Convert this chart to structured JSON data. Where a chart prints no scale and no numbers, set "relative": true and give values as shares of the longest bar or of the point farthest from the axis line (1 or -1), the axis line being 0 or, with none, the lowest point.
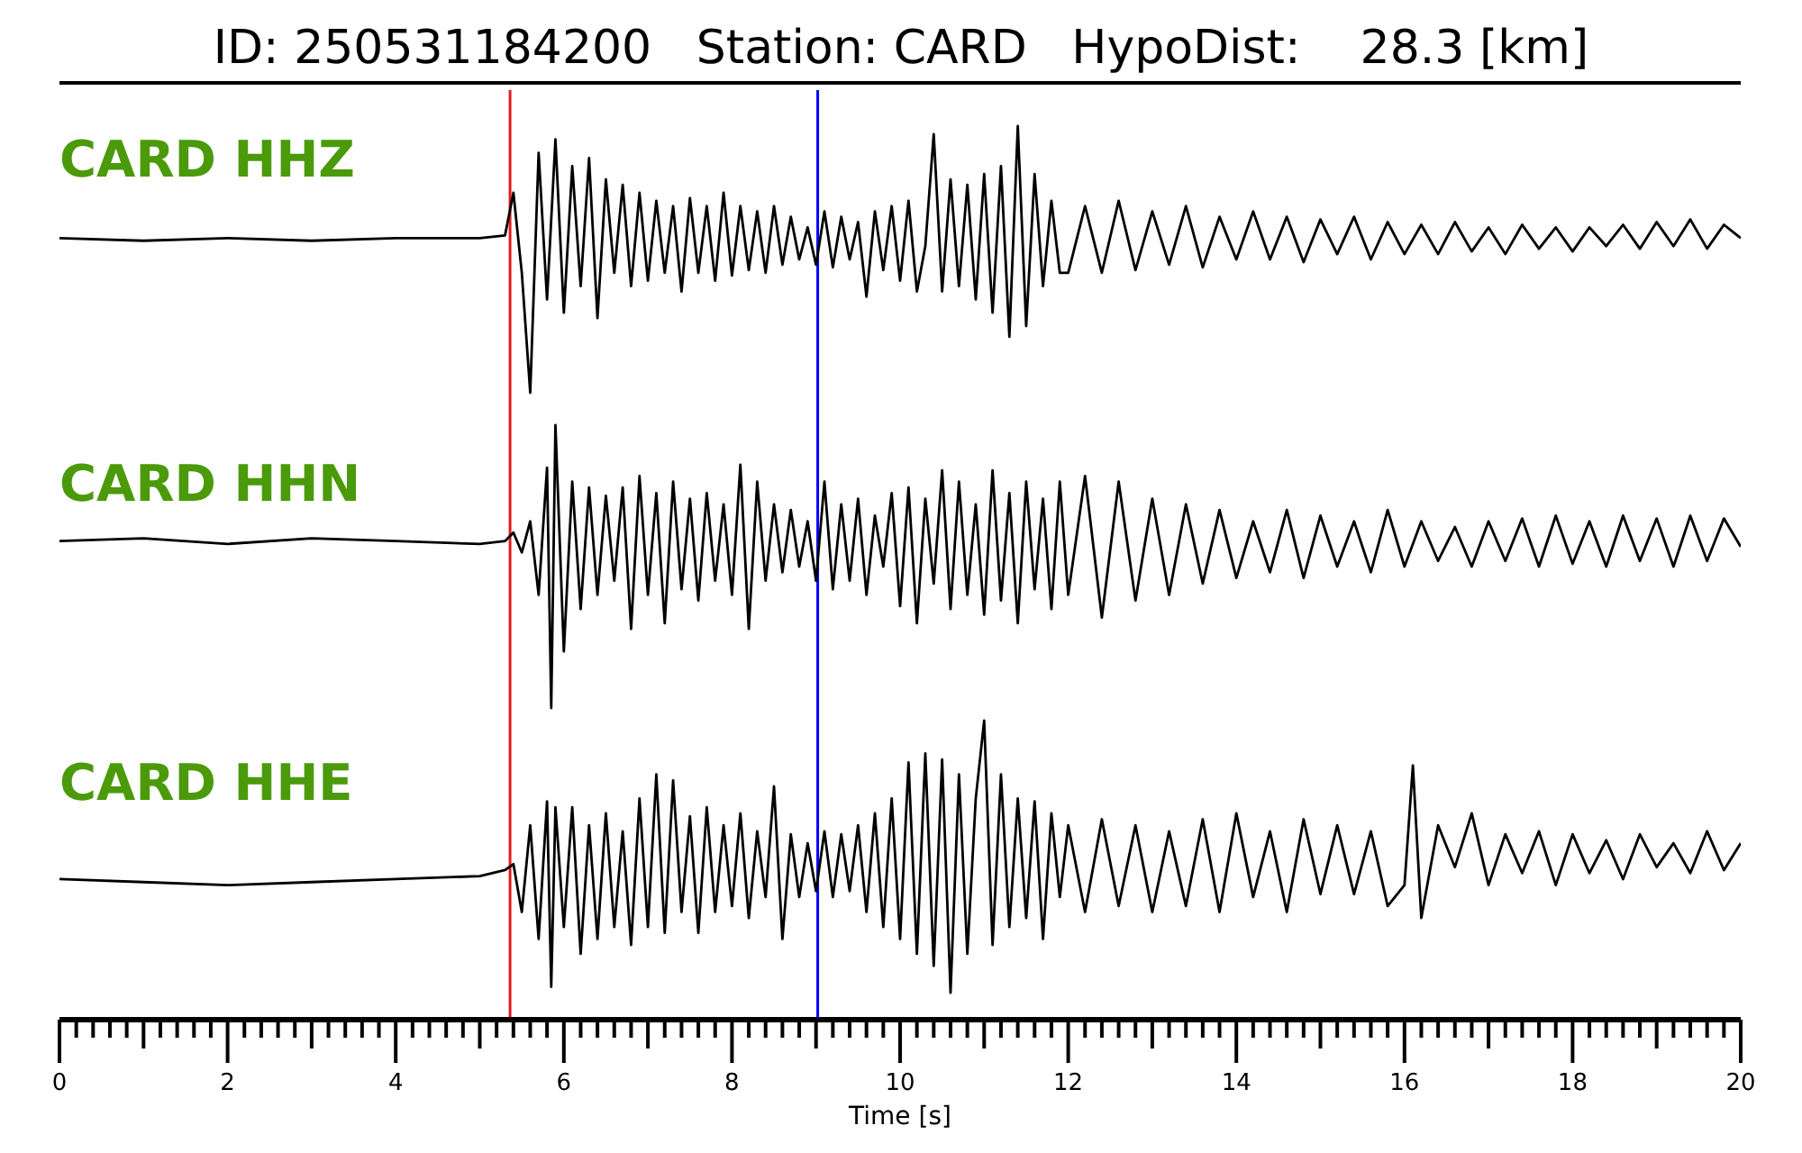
{
  "chart_data": [
    {
      "type": "line",
      "title": "ID: 250531184200   Station: CARD   HypoDist:    28.3 [km]",
      "relative": true,
      "color": "#000000",
      "xlim": [
        0,
        20
      ],
      "tick_labels": false,
      "annotations": [
        "CARD HHZ"
      ],
      "ref_lines": [
        {
          "axis": "x",
          "value": 5.36,
          "color": "#e31a1c"
        },
        {
          "axis": "x",
          "value": 9.02,
          "color": "#0000ff"
        }
      ],
      "x": [
        0,
        1,
        2,
        3,
        4,
        5,
        5.3,
        5.4,
        5.5,
        5.6,
        5.7,
        5.8,
        5.9,
        6,
        6.1,
        6.2,
        6.3,
        6.4,
        6.5,
        6.6,
        6.7,
        6.8,
        6.9,
        7,
        7.1,
        7.2,
        7.3,
        7.4,
        7.5,
        7.6,
        7.7,
        7.8,
        7.9,
        8,
        8.1,
        8.2,
        8.3,
        8.4,
        8.5,
        8.6,
        8.7,
        8.8,
        8.9,
        9,
        9.1,
        9.2,
        9.3,
        9.4,
        9.5,
        9.6,
        9.7,
        9.8,
        9.9,
        10,
        10.1,
        10.2,
        10.3,
        10.4,
        10.5,
        10.6,
        10.7,
        10.8,
        10.9,
        11,
        11.1,
        11.2,
        11.3,
        11.4,
        11.5,
        11.6,
        11.7,
        11.8,
        11.9,
        12,
        12.2,
        12.4,
        12.6,
        12.8,
        13,
        13.2,
        13.4,
        13.6,
        13.8,
        14,
        14.2,
        14.4,
        14.6,
        14.8,
        15,
        15.2,
        15.4,
        15.6,
        15.8,
        16,
        16.2,
        16.4,
        16.6,
        16.8,
        17,
        17.2,
        17.4,
        17.6,
        17.8,
        18,
        18.2,
        18.4,
        18.6,
        18.8,
        19,
        19.2,
        19.4,
        19.6,
        19.8,
        20
      ],
      "values": [
        0.58,
        0.57,
        0.58,
        0.57,
        0.58,
        0.58,
        0.59,
        0.75,
        0.45,
        0,
        0.9,
        0.35,
        0.95,
        0.3,
        0.85,
        0.4,
        0.88,
        0.28,
        0.8,
        0.45,
        0.78,
        0.4,
        0.75,
        0.42,
        0.72,
        0.45,
        0.7,
        0.38,
        0.73,
        0.45,
        0.7,
        0.42,
        0.75,
        0.44,
        0.7,
        0.46,
        0.68,
        0.45,
        0.7,
        0.48,
        0.66,
        0.5,
        0.62,
        0.48,
        0.68,
        0.47,
        0.66,
        0.5,
        0.64,
        0.36,
        0.68,
        0.46,
        0.7,
        0.42,
        0.72,
        0.38,
        0.55,
        0.97,
        0.38,
        0.8,
        0.4,
        0.78,
        0.35,
        0.82,
        0.3,
        0.85,
        0.21,
        1,
        0.25,
        0.82,
        0.4,
        0.72,
        0.45,
        0.45,
        0.7,
        0.45,
        0.72,
        0.46,
        0.68,
        0.48,
        0.7,
        0.47,
        0.66,
        0.5,
        0.68,
        0.5,
        0.66,
        0.49,
        0.65,
        0.52,
        0.66,
        0.5,
        0.64,
        0.52,
        0.63,
        0.52,
        0.64,
        0.53,
        0.62,
        0.52,
        0.63,
        0.54,
        0.62,
        0.53,
        0.62,
        0.55,
        0.63,
        0.54,
        0.64,
        0.55,
        0.65,
        0.54,
        0.63,
        0.58
      ]
    },
    {
      "type": "line",
      "relative": true,
      "color": "#000000",
      "xlim": [
        0,
        20
      ],
      "tick_labels": false,
      "annotations": [
        "CARD HHN"
      ],
      "ref_lines": [
        {
          "axis": "x",
          "value": 5.36,
          "color": "#e31a1c"
        },
        {
          "axis": "x",
          "value": 9.02,
          "color": "#0000ff"
        }
      ],
      "x": [
        0,
        1,
        2,
        3,
        4,
        5,
        5.3,
        5.4,
        5.5,
        5.6,
        5.7,
        5.8,
        5.85,
        5.9,
        6,
        6.1,
        6.2,
        6.3,
        6.4,
        6.5,
        6.6,
        6.7,
        6.8,
        6.9,
        7,
        7.1,
        7.2,
        7.3,
        7.4,
        7.5,
        7.6,
        7.7,
        7.8,
        7.9,
        8,
        8.1,
        8.2,
        8.3,
        8.4,
        8.5,
        8.6,
        8.7,
        8.8,
        8.9,
        9,
        9.1,
        9.2,
        9.3,
        9.4,
        9.5,
        9.6,
        9.7,
        9.8,
        9.9,
        10,
        10.1,
        10.2,
        10.3,
        10.4,
        10.5,
        10.6,
        10.7,
        10.8,
        10.9,
        11,
        11.1,
        11.2,
        11.3,
        11.4,
        11.5,
        11.6,
        11.7,
        11.8,
        11.9,
        12,
        12.2,
        12.4,
        12.6,
        12.8,
        13,
        13.2,
        13.4,
        13.6,
        13.8,
        14,
        14.2,
        14.4,
        14.6,
        14.8,
        15,
        15.2,
        15.4,
        15.6,
        15.8,
        16,
        16.2,
        16.4,
        16.6,
        16.8,
        17,
        17.2,
        17.4,
        17.6,
        17.8,
        18,
        18.2,
        18.4,
        18.6,
        18.8,
        19,
        19.2,
        19.4,
        19.6,
        19.8,
        20
      ],
      "values": [
        0.59,
        0.6,
        0.58,
        0.6,
        0.59,
        0.58,
        0.59,
        0.62,
        0.55,
        0.66,
        0.4,
        0.85,
        0,
        1,
        0.2,
        0.8,
        0.35,
        0.78,
        0.4,
        0.75,
        0.45,
        0.78,
        0.28,
        0.82,
        0.4,
        0.76,
        0.3,
        0.8,
        0.42,
        0.74,
        0.38,
        0.76,
        0.45,
        0.72,
        0.4,
        0.86,
        0.28,
        0.8,
        0.45,
        0.72,
        0.48,
        0.7,
        0.5,
        0.66,
        0.45,
        0.8,
        0.42,
        0.72,
        0.45,
        0.74,
        0.4,
        0.68,
        0.5,
        0.76,
        0.36,
        0.78,
        0.3,
        0.74,
        0.44,
        0.84,
        0.35,
        0.8,
        0.4,
        0.72,
        0.33,
        0.84,
        0.38,
        0.76,
        0.3,
        0.8,
        0.42,
        0.74,
        0.35,
        0.8,
        0.4,
        0.82,
        0.32,
        0.8,
        0.38,
        0.74,
        0.4,
        0.72,
        0.44,
        0.7,
        0.46,
        0.66,
        0.48,
        0.7,
        0.46,
        0.68,
        0.5,
        0.66,
        0.48,
        0.7,
        0.5,
        0.66,
        0.52,
        0.64,
        0.5,
        0.66,
        0.52,
        0.67,
        0.5,
        0.68,
        0.51,
        0.66,
        0.5,
        0.68,
        0.52,
        0.67,
        0.5,
        0.68,
        0.52,
        0.67,
        0.57
      ]
    },
    {
      "type": "line",
      "relative": true,
      "color": "#000000",
      "xlim": [
        0,
        20
      ],
      "tick_labels": "x",
      "xlabel": "Time [s]",
      "annotations": [
        "CARD HHE"
      ],
      "ref_lines": [
        {
          "axis": "x",
          "value": 5.36,
          "color": "#e31a1c"
        },
        {
          "axis": "x",
          "value": 9.02,
          "color": "#0000ff"
        }
      ],
      "xticks": [
        0,
        {
          "value": 0.2,
          "label": null
        },
        {
          "value": 0.4,
          "label": null
        },
        {
          "value": 0.6,
          "label": null
        },
        {
          "value": 0.8,
          "label": null
        },
        {
          "value": 1,
          "label": null
        },
        {
          "value": 1.2,
          "label": null
        },
        {
          "value": 1.4,
          "label": null
        },
        {
          "value": 1.6,
          "label": null
        },
        {
          "value": 1.8,
          "label": null
        },
        2,
        {
          "value": 2.2,
          "label": null
        },
        {
          "value": 2.4,
          "label": null
        },
        {
          "value": 2.6,
          "label": null
        },
        {
          "value": 2.8,
          "label": null
        },
        {
          "value": 3,
          "label": null
        },
        {
          "value": 3.2,
          "label": null
        },
        {
          "value": 3.4,
          "label": null
        },
        {
          "value": 3.6,
          "label": null
        },
        {
          "value": 3.8,
          "label": null
        },
        4,
        {
          "value": 4.2,
          "label": null
        },
        {
          "value": 4.4,
          "label": null
        },
        {
          "value": 4.6,
          "label": null
        },
        {
          "value": 4.8,
          "label": null
        },
        {
          "value": 5,
          "label": null
        },
        {
          "value": 5.2,
          "label": null
        },
        {
          "value": 5.4,
          "label": null
        },
        {
          "value": 5.6,
          "label": null
        },
        {
          "value": 5.8,
          "label": null
        },
        6,
        {
          "value": 6.2,
          "label": null
        },
        {
          "value": 6.4,
          "label": null
        },
        {
          "value": 6.6,
          "label": null
        },
        {
          "value": 6.8,
          "label": null
        },
        {
          "value": 7,
          "label": null
        },
        {
          "value": 7.2,
          "label": null
        },
        {
          "value": 7.4,
          "label": null
        },
        {
          "value": 7.6,
          "label": null
        },
        {
          "value": 7.8,
          "label": null
        },
        8,
        {
          "value": 8.2,
          "label": null
        },
        {
          "value": 8.4,
          "label": null
        },
        {
          "value": 8.6,
          "label": null
        },
        {
          "value": 8.8,
          "label": null
        },
        {
          "value": 9,
          "label": null
        },
        {
          "value": 9.2,
          "label": null
        },
        {
          "value": 9.4,
          "label": null
        },
        {
          "value": 9.6,
          "label": null
        },
        {
          "value": 9.8,
          "label": null
        },
        10,
        {
          "value": 10.2,
          "label": null
        },
        {
          "value": 10.4,
          "label": null
        },
        {
          "value": 10.6,
          "label": null
        },
        {
          "value": 10.8,
          "label": null
        },
        {
          "value": 11,
          "label": null
        },
        {
          "value": 11.2,
          "label": null
        },
        {
          "value": 11.4,
          "label": null
        },
        {
          "value": 11.6,
          "label": null
        },
        {
          "value": 11.8,
          "label": null
        },
        12,
        {
          "value": 12.2,
          "label": null
        },
        {
          "value": 12.4,
          "label": null
        },
        {
          "value": 12.6,
          "label": null
        },
        {
          "value": 12.8,
          "label": null
        },
        {
          "value": 13,
          "label": null
        },
        {
          "value": 13.2,
          "label": null
        },
        {
          "value": 13.4,
          "label": null
        },
        {
          "value": 13.6,
          "label": null
        },
        {
          "value": 13.8,
          "label": null
        },
        14,
        {
          "value": 14.2,
          "label": null
        },
        {
          "value": 14.4,
          "label": null
        },
        {
          "value": 14.6,
          "label": null
        },
        {
          "value": 14.8,
          "label": null
        },
        {
          "value": 15,
          "label": null
        },
        {
          "value": 15.2,
          "label": null
        },
        {
          "value": 15.4,
          "label": null
        },
        {
          "value": 15.6,
          "label": null
        },
        {
          "value": 15.8,
          "label": null
        },
        16,
        {
          "value": 16.2,
          "label": null
        },
        {
          "value": 16.4,
          "label": null
        },
        {
          "value": 16.6,
          "label": null
        },
        {
          "value": 16.8,
          "label": null
        },
        {
          "value": 17,
          "label": null
        },
        {
          "value": 17.2,
          "label": null
        },
        {
          "value": 17.4,
          "label": null
        },
        {
          "value": 17.6,
          "label": null
        },
        {
          "value": 17.8,
          "label": null
        },
        18,
        {
          "value": 18.2,
          "label": null
        },
        {
          "value": 18.4,
          "label": null
        },
        {
          "value": 18.6,
          "label": null
        },
        {
          "value": 18.8,
          "label": null
        },
        {
          "value": 19,
          "label": null
        },
        {
          "value": 19.2,
          "label": null
        },
        {
          "value": 19.4,
          "label": null
        },
        {
          "value": 19.6,
          "label": null
        },
        {
          "value": 19.8,
          "label": null
        },
        20
      ],
      "x": [
        0,
        1,
        2,
        3,
        4,
        5,
        5.3,
        5.4,
        5.5,
        5.6,
        5.7,
        5.8,
        5.85,
        5.9,
        6,
        6.1,
        6.2,
        6.3,
        6.4,
        6.5,
        6.6,
        6.7,
        6.8,
        6.9,
        7,
        7.1,
        7.2,
        7.3,
        7.4,
        7.5,
        7.6,
        7.7,
        7.8,
        7.9,
        8,
        8.1,
        8.2,
        8.3,
        8.4,
        8.5,
        8.6,
        8.7,
        8.8,
        8.9,
        9,
        9.1,
        9.2,
        9.3,
        9.4,
        9.5,
        9.6,
        9.7,
        9.8,
        9.9,
        10,
        10.1,
        10.2,
        10.3,
        10.4,
        10.5,
        10.6,
        10.7,
        10.8,
        10.9,
        11,
        11.1,
        11.2,
        11.3,
        11.4,
        11.5,
        11.6,
        11.7,
        11.8,
        11.9,
        12,
        12.2,
        12.4,
        12.6,
        12.8,
        13,
        13.2,
        13.4,
        13.6,
        13.8,
        14,
        14.2,
        14.4,
        14.6,
        14.8,
        15,
        15.2,
        15.4,
        15.6,
        15.8,
        16,
        16.1,
        16.2,
        16.4,
        16.6,
        16.8,
        17,
        17.2,
        17.4,
        17.6,
        17.8,
        18,
        18.2,
        18.4,
        18.6,
        18.8,
        19,
        19.2,
        19.4,
        19.6,
        19.8,
        20
      ],
      "values": [
        0.47,
        0.46,
        0.45,
        0.46,
        0.47,
        0.48,
        0.5,
        0.52,
        0.36,
        0.65,
        0.27,
        0.73,
        0.11,
        0.71,
        0.31,
        0.71,
        0.22,
        0.65,
        0.27,
        0.69,
        0.31,
        0.63,
        0.25,
        0.74,
        0.31,
        0.82,
        0.29,
        0.8,
        0.36,
        0.68,
        0.29,
        0.71,
        0.36,
        0.65,
        0.38,
        0.69,
        0.34,
        0.63,
        0.41,
        0.78,
        0.27,
        0.62,
        0.41,
        0.59,
        0.43,
        0.63,
        0.41,
        0.62,
        0.43,
        0.65,
        0.36,
        0.69,
        0.31,
        0.74,
        0.27,
        0.86,
        0.22,
        0.89,
        0.18,
        0.87,
        0.09,
        0.82,
        0.22,
        0.74,
        1,
        0.25,
        0.82,
        0.31,
        0.74,
        0.34,
        0.73,
        0.27,
        0.69,
        0.41,
        0.65,
        0.36,
        0.67,
        0.38,
        0.65,
        0.36,
        0.63,
        0.38,
        0.67,
        0.36,
        0.69,
        0.41,
        0.63,
        0.36,
        0.67,
        0.42,
        0.65,
        0.42,
        0.63,
        0.38,
        0.45,
        0.85,
        0.34,
        0.65,
        0.51,
        0.69,
        0.45,
        0.62,
        0.49,
        0.63,
        0.45,
        0.62,
        0.49,
        0.6,
        0.47,
        0.62,
        0.51,
        0.59,
        0.49,
        0.63,
        0.5,
        0.59
      ]
    }
  ]
}
